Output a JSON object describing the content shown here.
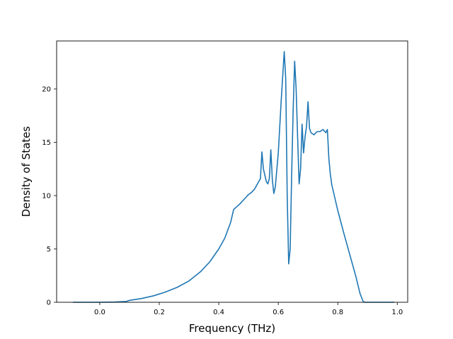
{
  "chart_data": {
    "type": "line",
    "title": "",
    "xlabel": "Frequency (THz)",
    "ylabel": "Density of States",
    "xlim": [
      -0.145,
      1.035
    ],
    "ylim": [
      0,
      24.5
    ],
    "xticks": [
      0.0,
      0.2,
      0.4,
      0.6,
      0.8,
      1.0
    ],
    "xtick_labels": [
      "0.0",
      "0.2",
      "0.4",
      "0.6",
      "0.8",
      "1.0"
    ],
    "yticks": [
      0,
      5,
      10,
      15,
      20
    ],
    "ytick_labels": [
      "0",
      "5",
      "10",
      "15",
      "20"
    ],
    "grid": false,
    "legend": "none",
    "line_color": "#1f77b4",
    "series": [
      {
        "x": [
          -0.09,
          -0.05,
          0.0,
          0.05,
          0.09,
          0.1,
          0.14,
          0.18,
          0.22,
          0.26,
          0.3,
          0.34,
          0.37,
          0.4,
          0.42,
          0.44,
          0.45,
          0.46,
          0.47,
          0.48,
          0.49,
          0.5,
          0.51,
          0.52,
          0.53,
          0.54,
          0.545,
          0.55,
          0.56,
          0.565,
          0.57,
          0.575,
          0.58,
          0.585,
          0.59,
          0.6,
          0.61,
          0.62,
          0.625,
          0.63,
          0.635,
          0.64,
          0.645,
          0.65,
          0.655,
          0.66,
          0.665,
          0.67,
          0.675,
          0.68,
          0.685,
          0.69,
          0.695,
          0.7,
          0.705,
          0.71,
          0.715,
          0.72,
          0.73,
          0.74,
          0.75,
          0.76,
          0.765,
          0.77,
          0.775,
          0.78,
          0.79,
          0.8,
          0.82,
          0.84,
          0.86,
          0.875,
          0.885,
          0.89,
          0.895,
          0.9,
          0.95,
          0.99
        ],
        "y": [
          0,
          0,
          0,
          0.02,
          0.08,
          0.18,
          0.35,
          0.6,
          0.95,
          1.4,
          2.0,
          2.9,
          3.8,
          5.0,
          6.0,
          7.5,
          8.7,
          8.95,
          9.2,
          9.5,
          9.8,
          10.1,
          10.3,
          10.6,
          11.1,
          11.6,
          14.1,
          12.5,
          11.3,
          11.1,
          11.6,
          14.3,
          11.5,
          10.2,
          10.8,
          14.0,
          19.0,
          23.5,
          21.0,
          10.0,
          3.6,
          5.0,
          12.0,
          18.0,
          22.6,
          20.0,
          15.5,
          11.1,
          12.5,
          16.7,
          14.0,
          15.5,
          16.5,
          18.8,
          16.3,
          15.9,
          15.8,
          15.7,
          16.0,
          16.0,
          16.2,
          15.9,
          16.2,
          13.5,
          12.0,
          11.0,
          9.8,
          8.6,
          6.5,
          4.5,
          2.5,
          0.8,
          0.1,
          0.0,
          0.0,
          0.0,
          0.0,
          0.0
        ]
      }
    ]
  }
}
